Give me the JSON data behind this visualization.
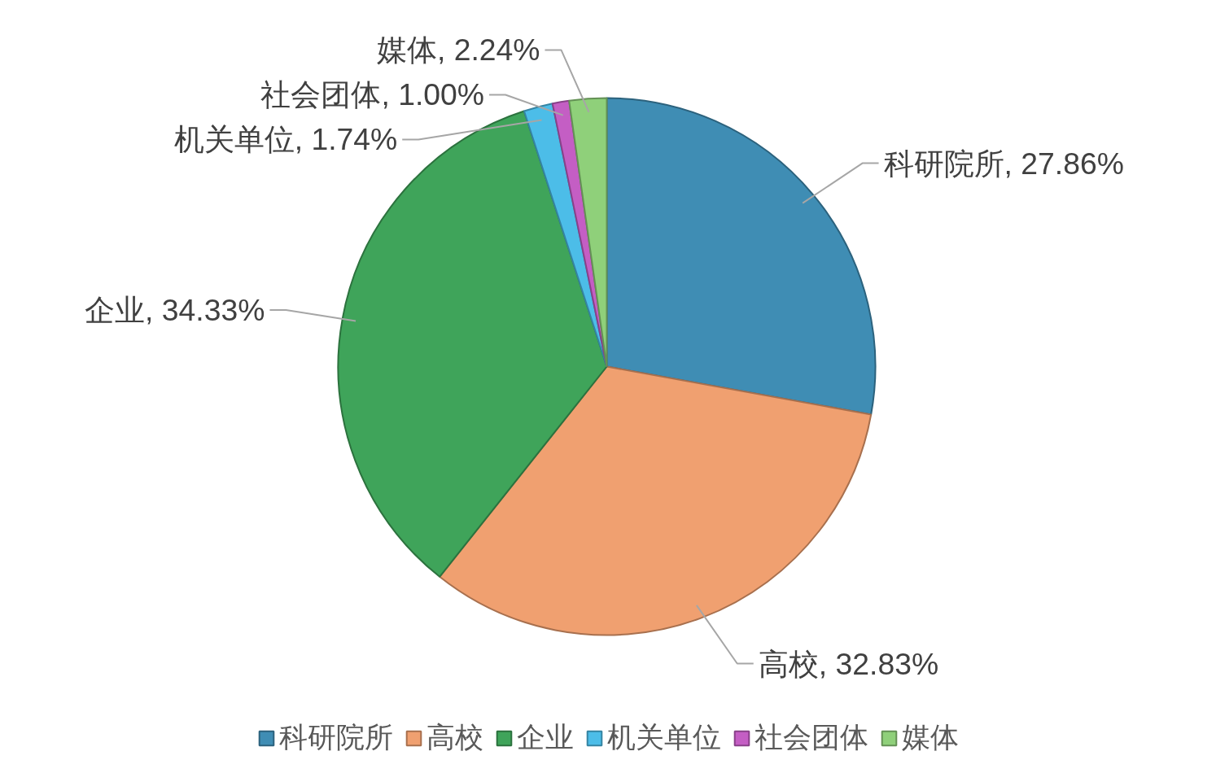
{
  "chart_data": {
    "type": "pie",
    "categories": [
      "科研院所",
      "高校",
      "企业",
      "机关单位",
      "社会团体",
      "媒体"
    ],
    "values": [
      27.86,
      32.83,
      34.33,
      1.74,
      1.0,
      2.24
    ],
    "colors": [
      "#3f8db4",
      "#f0a070",
      "#3fa45a",
      "#4cbde8",
      "#c45ec4",
      "#8fd07a"
    ],
    "value_labels": [
      "科研院所, 27.86%",
      "高校, 32.83%",
      "企业, 34.33%",
      "机关单位, 1.74%",
      "社会团体, 1.00%",
      "媒体, 2.24%"
    ],
    "legend": "bottom"
  }
}
